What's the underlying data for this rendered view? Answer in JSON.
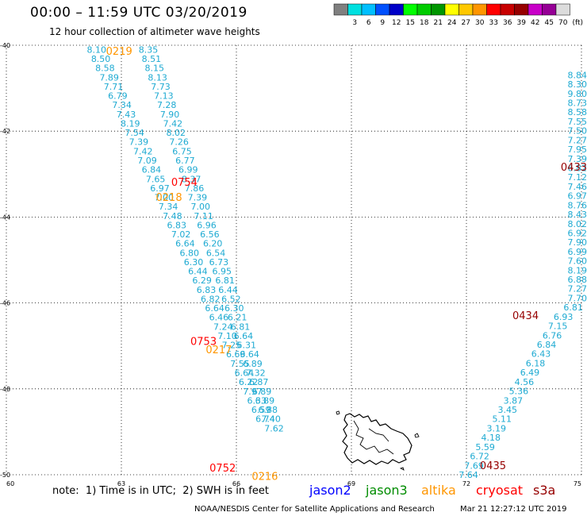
{
  "header": {
    "title": "00:00 – 11:59 UTC 03/20/2019",
    "subtitle": "12 hour collection of altimeter wave heights"
  },
  "colorbar": {
    "unit": "(ft)",
    "stops": [
      {
        "label": "",
        "color": "#808080"
      },
      {
        "label": "3",
        "color": "#00e0e0"
      },
      {
        "label": "6",
        "color": "#00bfff"
      },
      {
        "label": "9",
        "color": "#0050ff"
      },
      {
        "label": "12",
        "color": "#0000c8"
      },
      {
        "label": "15",
        "color": "#00ff00"
      },
      {
        "label": "18",
        "color": "#00cc00"
      },
      {
        "label": "21",
        "color": "#009600"
      },
      {
        "label": "24",
        "color": "#ffff00"
      },
      {
        "label": "27",
        "color": "#ffc800"
      },
      {
        "label": "30",
        "color": "#ff9600"
      },
      {
        "label": "33",
        "color": "#ff0000"
      },
      {
        "label": "36",
        "color": "#c80000"
      },
      {
        "label": "39",
        "color": "#960000"
      },
      {
        "label": "42",
        "color": "#c800c8"
      },
      {
        "label": "45",
        "color": "#960096"
      },
      {
        "label": "70",
        "color": "#dcdcdc"
      }
    ]
  },
  "axes": {
    "lon_ticks": [
      "60",
      "63",
      "66",
      "69",
      "72",
      "75"
    ],
    "lat_ticks": [
      "-40",
      "-42",
      "-44",
      "-46",
      "-48",
      "-50"
    ]
  },
  "map": {
    "value_color": "#1eaad2",
    "tracks": [
      {
        "lon_start": 62.1,
        "lat_start": -40.1,
        "lon_step": 0.11,
        "lat_step": 0.215,
        "values": [
          "8.10",
          "8.50",
          "8.58",
          "7.89",
          "7.71",
          "6.79",
          "7.34",
          "7.43",
          "8.19",
          "7.54",
          "7.39",
          "7.42",
          "7.09",
          "6.84",
          "7.65",
          "6.97",
          "7.00",
          "7.34",
          "7.48",
          "6.83",
          "7.02",
          "6.64",
          "6.80",
          "6.30",
          "6.44",
          "6.29",
          "6.83",
          "6.82",
          "6.64",
          "6.46",
          "7.24",
          "7.10",
          "7.25",
          "6.69",
          "7.55",
          "6.64",
          "6.22",
          "7.97",
          "6.33",
          "6.59",
          "6.74"
        ]
      },
      {
        "lon_start": 63.45,
        "lat_start": -40.1,
        "lon_step": 0.08,
        "lat_step": 0.215,
        "values": [
          "8.35",
          "8.51",
          "8.15",
          "8.13",
          "7.73",
          "7.13",
          "7.28",
          "7.90",
          "7.42",
          "8.02",
          "7.26",
          "6.75",
          "6.77",
          "6.99",
          "8.37",
          "7.86",
          "7.39",
          "7.00",
          "7.11",
          "6.96",
          "6.56",
          "6.20",
          "6.54",
          "6.73",
          "6.95",
          "6.81",
          "6.44",
          "6.52",
          "6.30",
          "6.21",
          "6.81",
          "6.64",
          "6.31",
          "6.64",
          "6.89",
          "7.32",
          "6.87",
          "6.89",
          "6.89",
          "6.88",
          "7.40",
          "7.62"
        ]
      },
      {
        "lon_start": 71.8,
        "lat_start": -50.0,
        "lon_step": 0.1455,
        "lat_step": -0.2165,
        "values": [
          "7.64",
          "7.69",
          "6.72",
          "5.59",
          "4.18",
          "3.19",
          "5.11",
          "3.45",
          "3.87",
          "5.36",
          "4.56",
          "6.49",
          "6.18",
          "6.43",
          "6.84",
          "6.76",
          "7.15",
          "6.93",
          "6.81",
          "7.70",
          "7.27",
          "6.88",
          "8.19",
          "7.60",
          "6.99",
          "7.90",
          "6.92",
          "8.02",
          "8.43",
          "8.76",
          "6.97",
          "7.46",
          "7.12",
          "6.82",
          "7.39",
          "7.95",
          "7.27",
          "7.50",
          "7.55",
          "8.58",
          "8.73",
          "9.80",
          "8.30",
          "8.84"
        ]
      }
    ],
    "pass_labels": [
      {
        "text": "0219",
        "lon": 62.6,
        "lat": -40.15,
        "color": "#ff9600"
      },
      {
        "text": "0754",
        "lon": 64.3,
        "lat": -43.2,
        "color": "#ff0000"
      },
      {
        "text": "0218",
        "lon": 63.9,
        "lat": -43.55,
        "color": "#ff9600"
      },
      {
        "text": "0753",
        "lon": 64.8,
        "lat": -46.9,
        "color": "#ff0000"
      },
      {
        "text": "0217",
        "lon": 65.2,
        "lat": -47.1,
        "color": "#ff9600"
      },
      {
        "text": "0752",
        "lon": 65.3,
        "lat": -49.85,
        "color": "#ff0000"
      },
      {
        "text": "0216",
        "lon": 66.4,
        "lat": -50.05,
        "color": "#ff9600"
      },
      {
        "text": "0435",
        "lon": 72.35,
        "lat": -49.8,
        "color": "#960000"
      },
      {
        "text": "0434",
        "lon": 73.2,
        "lat": -46.3,
        "color": "#960000"
      },
      {
        "text": "0433",
        "lon": 74.6,
        "lat": -42.85,
        "color": "#960000"
      }
    ]
  },
  "footer": {
    "note": "note:  1) Time is in UTC;  2) SWH is in feet",
    "satellites": [
      {
        "name": "jason2",
        "color": "#0000ff"
      },
      {
        "name": "jason3",
        "color": "#008c00"
      },
      {
        "name": "altika",
        "color": "#ff9600"
      },
      {
        "name": "cryosat",
        "color": "#ff0000"
      },
      {
        "name": "s3a",
        "color": "#960000"
      }
    ],
    "credit": "NOAA/NESDIS Center for Satellite Applications and Research",
    "timestamp": "Mar 21 12:27:12 UTC 2019"
  }
}
